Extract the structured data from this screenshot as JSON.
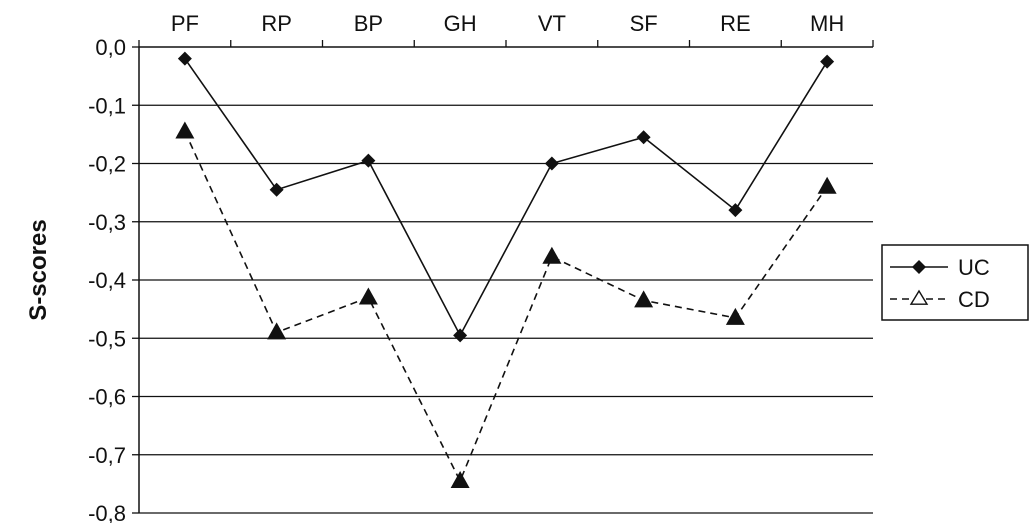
{
  "chart_data": {
    "type": "line",
    "categories": [
      "PF",
      "RP",
      "BP",
      "GH",
      "VT",
      "SF",
      "RE",
      "MH"
    ],
    "ylabel": "S-scores",
    "ylim": [
      -0.8,
      0.0
    ],
    "yticks": [
      0.0,
      -0.1,
      -0.2,
      -0.3,
      -0.4,
      -0.5,
      -0.6,
      -0.7,
      -0.8
    ],
    "ytick_labels": [
      "0,0",
      "-0,1",
      "-0,2",
      "-0,3",
      "-0,4",
      "-0,5",
      "-0,6",
      "-0,7",
      "-0,8"
    ],
    "x_axis_position": "top",
    "grid": true,
    "legend_position": "right",
    "series": [
      {
        "name": "UC",
        "marker": "diamond",
        "line_style": "solid",
        "values": [
          -0.02,
          -0.245,
          -0.195,
          -0.495,
          -0.2,
          -0.155,
          -0.28,
          -0.025
        ]
      },
      {
        "name": "CD",
        "marker": "triangle",
        "line_style": "dashed",
        "values": [
          -0.145,
          -0.49,
          -0.43,
          -0.745,
          -0.36,
          -0.435,
          -0.465,
          -0.24
        ]
      }
    ],
    "colors": {
      "line": "#111111",
      "grid": "#111111",
      "background": "#ffffff"
    }
  }
}
